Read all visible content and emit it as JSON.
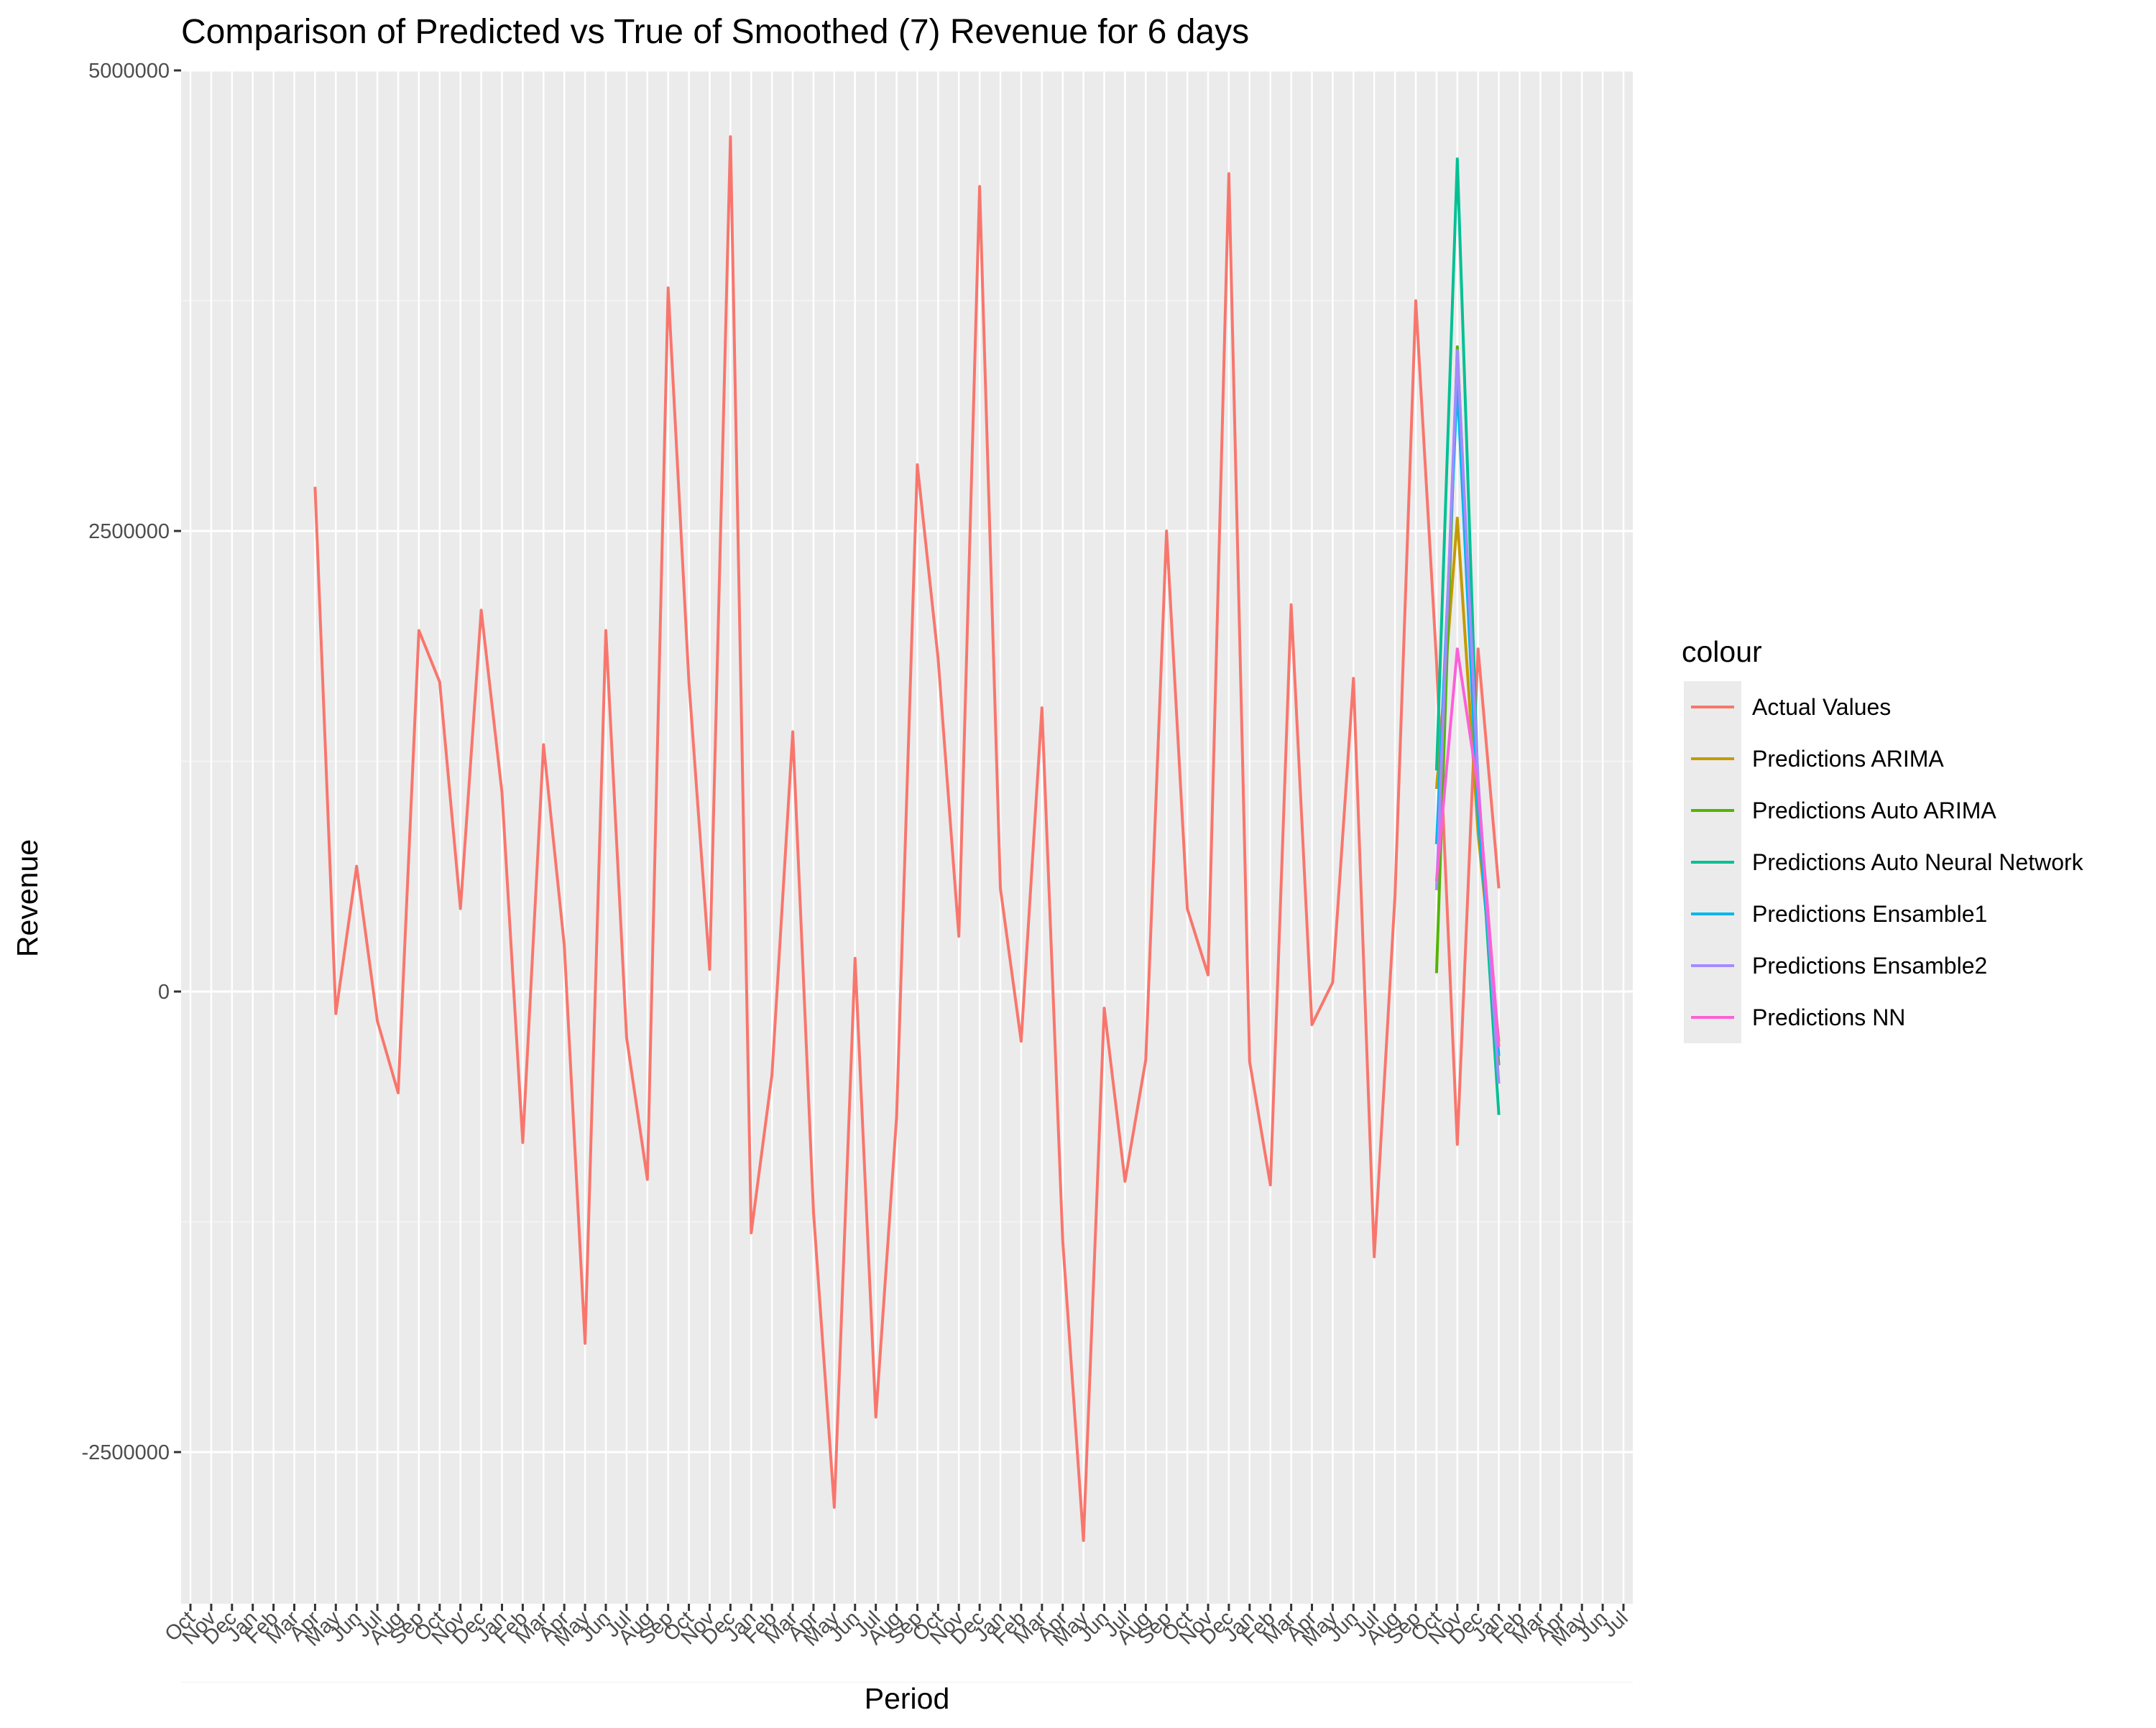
{
  "chart_data": {
    "type": "line",
    "title": "Comparison of Predicted vs True of Smoothed (7) Revenue for 6 days",
    "xlabel": "Period",
    "ylabel": "Revenue",
    "ylim": [
      -3300000,
      5000000
    ],
    "y_ticks": [
      -2500000,
      0,
      2500000,
      5000000
    ],
    "y_tick_labels": [
      "-2500000",
      "0",
      "2500000",
      "5000000"
    ],
    "grid": true,
    "legend_title": "colour",
    "legend_position": "right",
    "x_tick_labels": [
      "Oct",
      "Nov",
      "Dec",
      "Jan",
      "Feb",
      "Mar",
      "Apr",
      "May",
      "Jun",
      "Jul",
      "Aug",
      "Sep",
      "Oct",
      "Nov",
      "Dec",
      "Jan",
      "Feb",
      "Mar",
      "Apr",
      "May",
      "Jun",
      "Jul",
      "Aug",
      "Sep",
      "Oct",
      "Nov",
      "Dec",
      "Jan",
      "Feb",
      "Mar",
      "Apr",
      "May",
      "Jun",
      "Jul",
      "Aug",
      "Sep",
      "Oct",
      "Nov",
      "Dec",
      "Jan",
      "Feb",
      "Mar",
      "Apr",
      "May",
      "Jun",
      "Jul",
      "Aug",
      "Sep",
      "Oct",
      "Nov",
      "Dec",
      "Jan",
      "Feb",
      "Mar",
      "Apr",
      "May",
      "Jun",
      "Jul",
      "Aug",
      "Sep",
      "Oct",
      "Nov",
      "Dec",
      "Jan",
      "Feb",
      "Mar",
      "Apr",
      "May",
      "Jun",
      "Jul"
    ],
    "series": [
      {
        "name": "Actual Values",
        "color": "#F8766D",
        "x": [
          6,
          7,
          8,
          9,
          10,
          11,
          12,
          13,
          14,
          15,
          16,
          17,
          18,
          19,
          20,
          21,
          22,
          23,
          24,
          25,
          26,
          27,
          28,
          29,
          30,
          31,
          32,
          33,
          34,
          35,
          36,
          37,
          38,
          39,
          40,
          41,
          42,
          43,
          44,
          45,
          46,
          47,
          48,
          49,
          50,
          51,
          52,
          53,
          54,
          55,
          56,
          57,
          58,
          59,
          60,
          61,
          62,
          63
        ],
        "values": [
          2740000,
          -120000,
          680000,
          -160000,
          -550000,
          1960000,
          1680000,
          450000,
          2070000,
          1080000,
          -820000,
          1340000,
          250000,
          -1910000,
          1960000,
          -250000,
          -1020000,
          3820000,
          1680000,
          120000,
          4640000,
          -1310000,
          -450000,
          1410000,
          -1200000,
          -2800000,
          180000,
          -2310000,
          -680000,
          2860000,
          1810000,
          300000,
          4370000,
          560000,
          -270000,
          1540000,
          -1350000,
          -2980000,
          -90000,
          -1030000,
          -370000,
          2500000,
          450000,
          90000,
          4440000,
          -380000,
          -1050000,
          2100000,
          -180000,
          50000,
          1700000,
          -1440000,
          520000,
          3750000,
          1790000,
          -830000,
          1860000,
          560000
        ]
      },
      {
        "name": "Predictions ARIMA",
        "color": "#C49A00",
        "x": [
          60,
          61,
          62,
          63
        ],
        "values": [
          1100000,
          2570000,
          860000,
          -270000
        ]
      },
      {
        "name": "Predictions Auto ARIMA",
        "color": "#53B400",
        "x": [
          60,
          61,
          62,
          63
        ],
        "values": [
          100000,
          3500000,
          1000000,
          -400000
        ]
      },
      {
        "name": "Predictions Auto Neural Network",
        "color": "#00C094",
        "x": [
          60,
          61,
          62,
          63
        ],
        "values": [
          1200000,
          4520000,
          1100000,
          -670000
        ]
      },
      {
        "name": "Predictions Ensamble1",
        "color": "#00B6EB",
        "x": [
          60,
          61,
          62,
          63
        ],
        "values": [
          800000,
          3300000,
          950000,
          -350000
        ]
      },
      {
        "name": "Predictions Ensamble2",
        "color": "#A58AFF",
        "x": [
          60,
          61,
          62,
          63
        ],
        "values": [
          550000,
          3480000,
          1150000,
          -500000
        ]
      },
      {
        "name": "Predictions NN",
        "color": "#FB61D7",
        "x": [
          60,
          61,
          62,
          63
        ],
        "values": [
          600000,
          1860000,
          1100000,
          -300000
        ]
      }
    ]
  }
}
